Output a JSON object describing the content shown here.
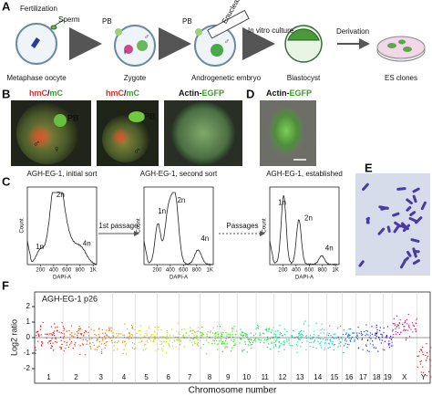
{
  "panel_a": {
    "label": "A",
    "fertilization": "Fertilization",
    "sperm": "Sperm",
    "oocyte": "Metaphase oocyte",
    "pb1": "PB",
    "zygote": "Zygote",
    "zygote_male": "♂",
    "zygote_female": "♀",
    "pb2": "PB",
    "enucleation": "Enucleation",
    "culture": "In vitro culture",
    "embryo": "Androgenetic embryo",
    "embryo_male": "♂",
    "blastocyst": "Blastocyst",
    "derivation": "Derivation",
    "es": "ES clones"
  },
  "panel_b": {
    "label": "B",
    "images": [
      {
        "stain_a": "hmC",
        "sep": "/",
        "stain_b": "mC",
        "pb": "PB",
        "male": "♂",
        "female": "♀"
      },
      {
        "stain_a": "hmC",
        "sep": "/",
        "stain_b": "mC",
        "pb": "PB",
        "male": "♂"
      },
      {
        "stain_a": "Actin-",
        "stain_b": "EGFP"
      }
    ]
  },
  "panel_d": {
    "label": "D",
    "stain_a": "Actin-",
    "stain_b": "EGFP"
  },
  "panel_c": {
    "label": "C",
    "arrows": [
      "1st passage",
      "Passages"
    ],
    "histograms": [
      {
        "title": "AGH-EG-1, initial sort",
        "peaks": [
          "1n",
          "2n",
          "4n"
        ],
        "ylabel": "Count",
        "xlabel": "DAPI-A",
        "xticks": [
          "200",
          "400",
          "600",
          "800",
          "1K"
        ]
      },
      {
        "title": "AGH-EG-1, second sort",
        "peaks": [
          "1n",
          "2n",
          "4n"
        ],
        "ylabel": "Count",
        "xlabel": "DAPI-A",
        "xticks": [
          "200",
          "400",
          "600",
          "800",
          "1K"
        ]
      },
      {
        "title": "AGH-EG-1, established",
        "peaks": [
          "1n",
          "2n",
          "4n"
        ],
        "ylabel": "Count",
        "xlabel": "DAPI-A",
        "xticks": [
          "200",
          "400",
          "600",
          "800",
          "1K"
        ]
      }
    ]
  },
  "panel_e": {
    "label": "E"
  },
  "panel_f": {
    "label": "F",
    "title": "AGH-EG-1 p26",
    "ylabel": "Log2 ratio",
    "yticks": [
      "2",
      "1",
      "0",
      "-1",
      "-2"
    ],
    "chromosomes": [
      "1",
      "2",
      "3",
      "4",
      "5",
      "6",
      "7",
      "8",
      "9",
      "10",
      "11",
      "12",
      "13",
      "14",
      "15",
      "16",
      "17",
      "18",
      "19",
      "X",
      "Y"
    ],
    "xlabel": "Chromosome number"
  }
}
